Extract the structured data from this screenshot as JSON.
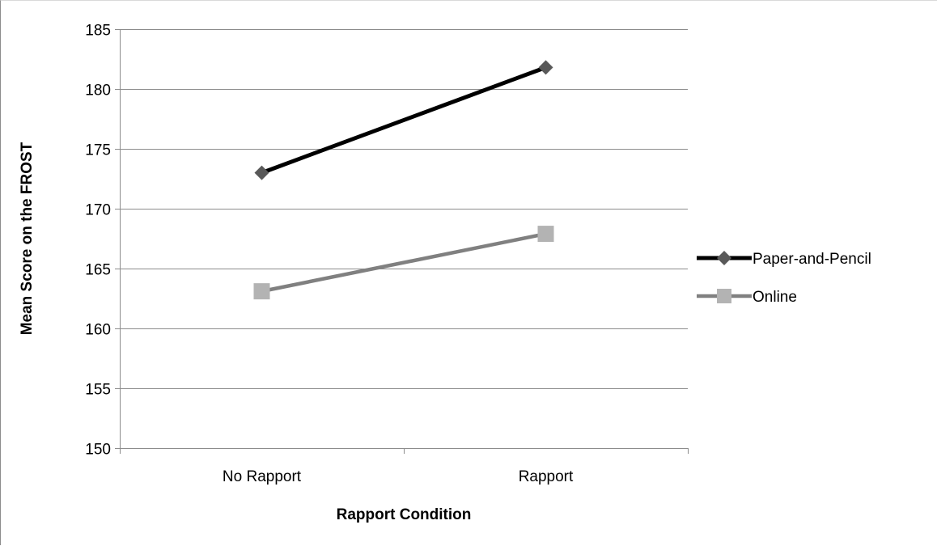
{
  "chart_data": {
    "type": "line",
    "title": "",
    "xlabel": "Rapport Condition",
    "ylabel": "Mean Score on the FROST",
    "categories": [
      "No Rapport",
      "Rapport"
    ],
    "ylim": [
      150,
      185
    ],
    "yticks": [
      150,
      155,
      160,
      165,
      170,
      175,
      180,
      185
    ],
    "grid": true,
    "legend_position": "right",
    "series": [
      {
        "name": "Paper-and-Pencil",
        "values": [
          173,
          181.8
        ],
        "color": "#000000",
        "marker_color": "#595959",
        "marker": "diamond"
      },
      {
        "name": "Online",
        "values": [
          163.1,
          167.9
        ],
        "color": "#808080",
        "marker_color": "#b3b3b3",
        "marker": "square"
      }
    ]
  }
}
